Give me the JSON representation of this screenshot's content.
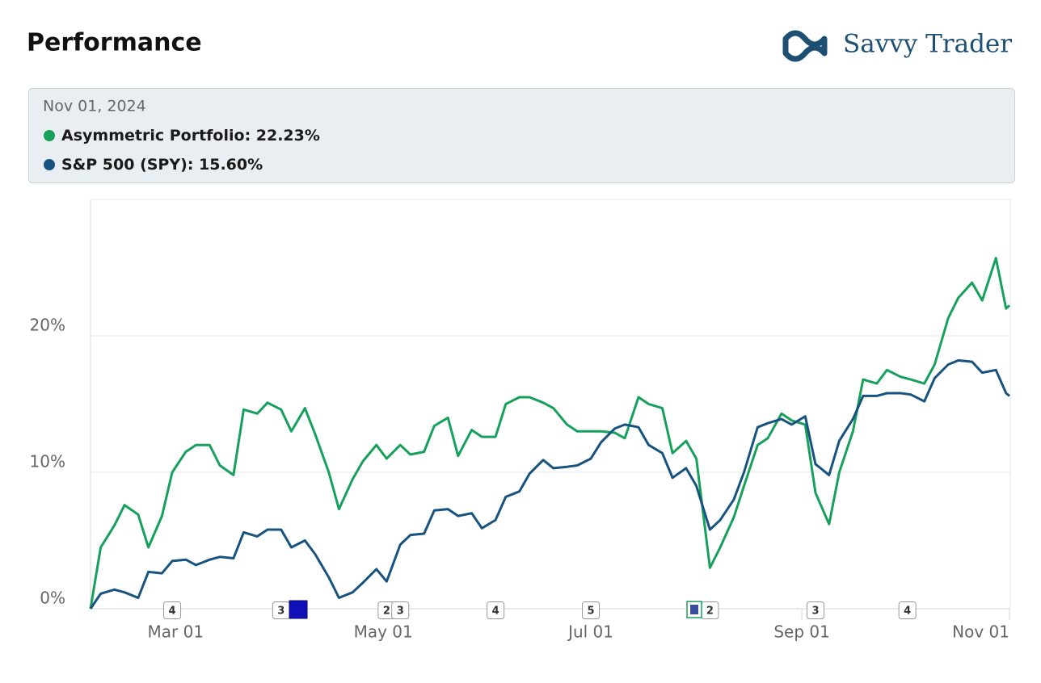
{
  "header": {
    "title": "Performance",
    "brand": "Savvy Trader"
  },
  "chart_data": {
    "type": "line",
    "tooltip": {
      "date": "Nov 01, 2024",
      "labels": [
        ": 22.23%",
        ": 15.60%"
      ]
    },
    "x": [
      "2024-02-05",
      "2024-02-08",
      "2024-02-12",
      "2024-02-15",
      "2024-02-19",
      "2024-02-22",
      "2024-02-26",
      "2024-02-29",
      "2024-03-04",
      "2024-03-07",
      "2024-03-11",
      "2024-03-14",
      "2024-03-18",
      "2024-03-21",
      "2024-03-25",
      "2024-03-28",
      "2024-04-01",
      "2024-04-04",
      "2024-04-08",
      "2024-04-11",
      "2024-04-15",
      "2024-04-18",
      "2024-04-22",
      "2024-04-25",
      "2024-04-29",
      "2024-05-02",
      "2024-05-06",
      "2024-05-09",
      "2024-05-13",
      "2024-05-16",
      "2024-05-20",
      "2024-05-23",
      "2024-05-27",
      "2024-05-30",
      "2024-06-03",
      "2024-06-06",
      "2024-06-10",
      "2024-06-13",
      "2024-06-17",
      "2024-06-20",
      "2024-06-24",
      "2024-06-27",
      "2024-07-01",
      "2024-07-04",
      "2024-07-08",
      "2024-07-11",
      "2024-07-15",
      "2024-07-18",
      "2024-07-22",
      "2024-07-25",
      "2024-07-29",
      "2024-08-01",
      "2024-08-05",
      "2024-08-08",
      "2024-08-12",
      "2024-08-15",
      "2024-08-19",
      "2024-08-22",
      "2024-08-26",
      "2024-08-29",
      "2024-09-02",
      "2024-09-05",
      "2024-09-09",
      "2024-09-12",
      "2024-09-16",
      "2024-09-19",
      "2024-09-23",
      "2024-09-26",
      "2024-09-30",
      "2024-10-03",
      "2024-10-07",
      "2024-10-10",
      "2024-10-14",
      "2024-10-17",
      "2024-10-21",
      "2024-10-24",
      "2024-10-28",
      "2024-10-31",
      "2024-11-01"
    ],
    "series": [
      {
        "name": "Asymmetric Portfolio",
        "color": "#16a05b",
        "values": [
          0,
          4.5,
          6.1,
          7.6,
          6.9,
          4.5,
          6.8,
          10.0,
          11.5,
          12.0,
          12.0,
          10.5,
          9.8,
          14.6,
          14.3,
          15.1,
          14.6,
          13.0,
          14.7,
          12.8,
          10.0,
          7.3,
          9.5,
          10.8,
          12.0,
          11.0,
          12.0,
          11.3,
          11.5,
          13.4,
          14.0,
          11.2,
          13.1,
          12.6,
          12.6,
          15.0,
          15.5,
          15.5,
          15.1,
          14.7,
          13.5,
          13.0,
          13.0,
          13.0,
          12.9,
          12.5,
          15.5,
          15.0,
          14.7,
          11.4,
          12.3,
          11.0,
          3.0,
          4.5,
          6.7,
          9.0,
          12.0,
          12.5,
          14.3,
          13.8,
          13.5,
          8.5,
          6.2,
          10.0,
          13.0,
          16.8,
          16.5,
          17.5,
          17.0,
          16.8,
          16.5,
          17.9,
          21.3,
          22.8,
          23.9,
          22.6,
          25.7,
          22.0,
          22.23
        ]
      },
      {
        "name": "S&P 500 (SPY)",
        "color": "#17537e",
        "values": [
          0,
          1.1,
          1.4,
          1.2,
          0.8,
          2.7,
          2.6,
          3.5,
          3.6,
          3.2,
          3.6,
          3.8,
          3.7,
          5.6,
          5.3,
          5.8,
          5.8,
          4.5,
          5.0,
          4.0,
          2.3,
          0.8,
          1.2,
          1.9,
          2.9,
          2.0,
          4.7,
          5.4,
          5.5,
          7.2,
          7.3,
          6.8,
          7.0,
          5.9,
          6.5,
          8.2,
          8.6,
          9.9,
          10.9,
          10.3,
          10.4,
          10.5,
          11.0,
          12.2,
          13.2,
          13.5,
          13.3,
          12.0,
          11.4,
          9.6,
          10.3,
          9.0,
          5.8,
          6.5,
          8.0,
          10.0,
          13.3,
          13.6,
          13.9,
          13.5,
          14.1,
          10.6,
          9.8,
          12.3,
          13.9,
          15.6,
          15.6,
          15.8,
          15.8,
          15.7,
          15.2,
          16.9,
          17.9,
          18.2,
          18.1,
          17.3,
          17.5,
          15.8,
          15.6
        ]
      }
    ],
    "xlim": [
      "2024-02-05",
      "2024-11-01"
    ],
    "xticks": [
      {
        "value": "2024-03-01",
        "label": "Mar 01"
      },
      {
        "value": "2024-05-01",
        "label": "May 01"
      },
      {
        "value": "2024-07-01",
        "label": "Jul 01"
      },
      {
        "value": "2024-09-01",
        "label": "Sep 01"
      },
      {
        "value": "2024-11-01",
        "label": "Nov 01"
      }
    ],
    "ylim": [
      0,
      30
    ],
    "yticks": [
      {
        "value": 0,
        "label": "0%"
      },
      {
        "value": 10,
        "label": "10%"
      },
      {
        "value": 20,
        "label": "20%"
      }
    ],
    "grid": true,
    "events": [
      {
        "x": "2024-02-29",
        "label": "4"
      },
      {
        "x": "2024-04-01",
        "label": "3"
      },
      {
        "x": "2024-05-02",
        "label": "2"
      },
      {
        "x": "2024-05-06",
        "label": "3"
      },
      {
        "x": "2024-06-03",
        "label": "4"
      },
      {
        "x": "2024-07-01",
        "label": "5"
      },
      {
        "x": "2024-08-05",
        "label": "2"
      },
      {
        "x": "2024-09-05",
        "label": "3"
      },
      {
        "x": "2024-10-02",
        "label": "4"
      }
    ]
  }
}
